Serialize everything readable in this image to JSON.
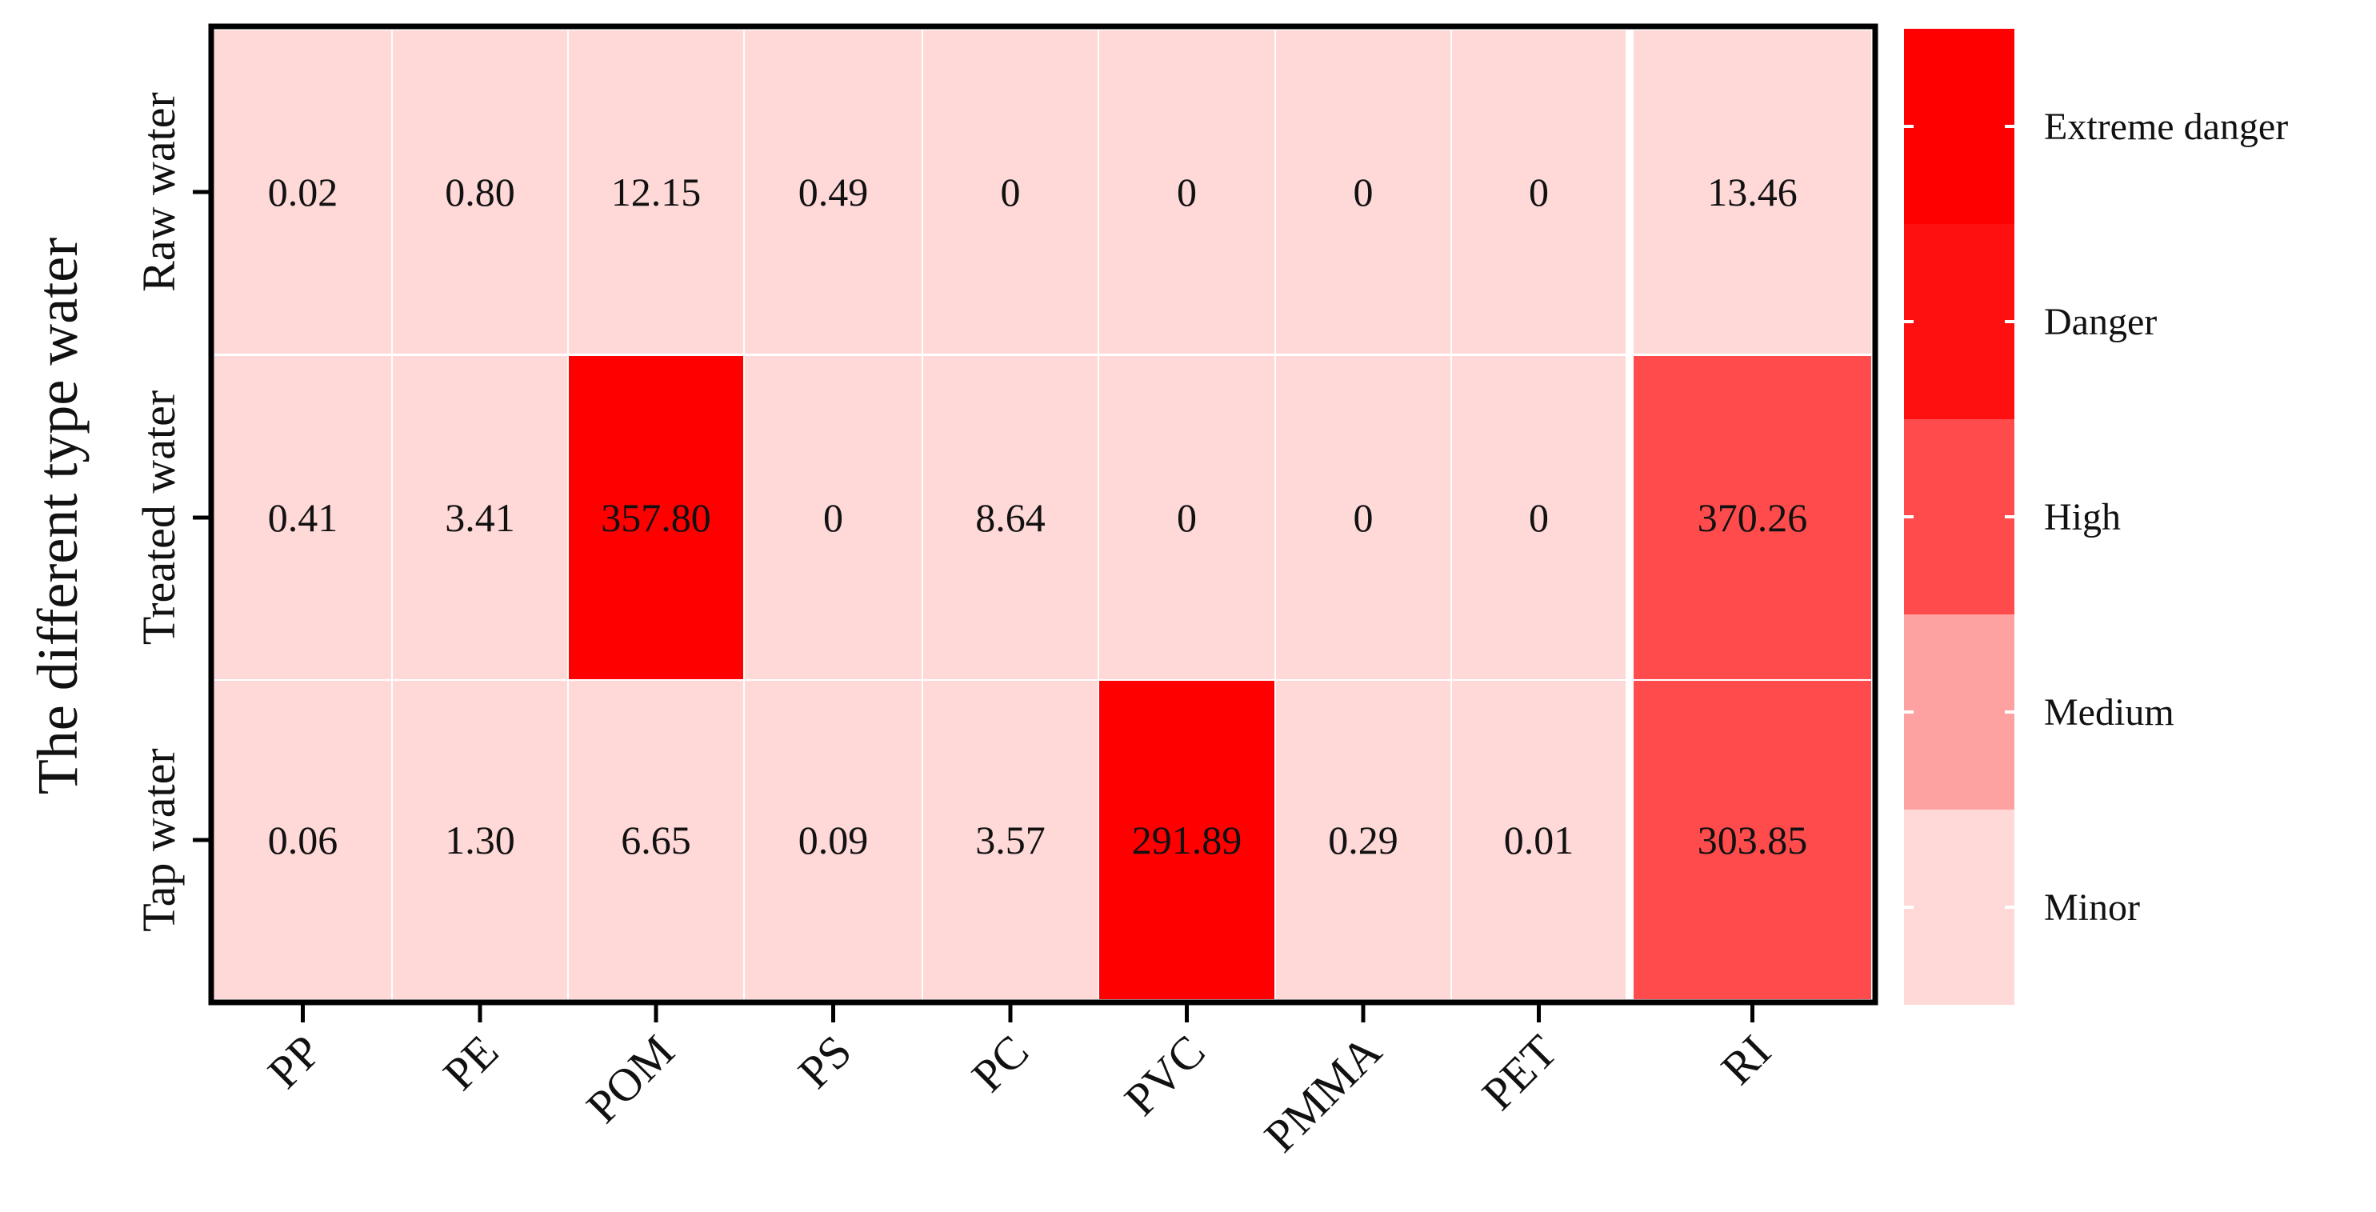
{
  "chart_data": {
    "type": "heatmap",
    "ylabel": "The different type water",
    "xlabel": "",
    "columns": [
      "PP",
      "PE",
      "POM",
      "PS",
      "PC",
      "PVC",
      "PMMA",
      "PET",
      "RI"
    ],
    "rows": [
      "Raw water",
      "Treated water",
      "Tap water"
    ],
    "cells": [
      [
        "0.02",
        "0.80",
        "12.15",
        "0.49",
        "0",
        "0",
        "0",
        "0",
        "13.46"
      ],
      [
        "0.41",
        "3.41",
        "357.80",
        "0",
        "8.64",
        "0",
        "0",
        "0",
        "370.26"
      ],
      [
        "0.06",
        "1.30",
        "6.65",
        "0.09",
        "3.57",
        "291.89",
        "0.29",
        "0.01",
        "303.85"
      ]
    ],
    "levels": [
      [
        "minor",
        "minor",
        "minor",
        "minor",
        "minor",
        "minor",
        "minor",
        "minor",
        "minor"
      ],
      [
        "minor",
        "minor",
        "extreme",
        "minor",
        "minor",
        "minor",
        "minor",
        "minor",
        "high"
      ],
      [
        "minor",
        "minor",
        "minor",
        "minor",
        "minor",
        "extreme",
        "minor",
        "minor",
        "high"
      ]
    ],
    "legend": {
      "placement": "right",
      "items": [
        {
          "key": "extreme",
          "label": "Extreme danger",
          "color": "#fe0000"
        },
        {
          "key": "danger",
          "label": "Danger",
          "color": "#fe1010"
        },
        {
          "key": "high",
          "label": " High",
          "color": "#ff4b4b"
        },
        {
          "key": "medium",
          "label": " Medium",
          "color": "#fea1a1"
        },
        {
          "key": "minor",
          "label": "Minor",
          "color": "#ffd8d8"
        }
      ]
    },
    "grid": true
  }
}
